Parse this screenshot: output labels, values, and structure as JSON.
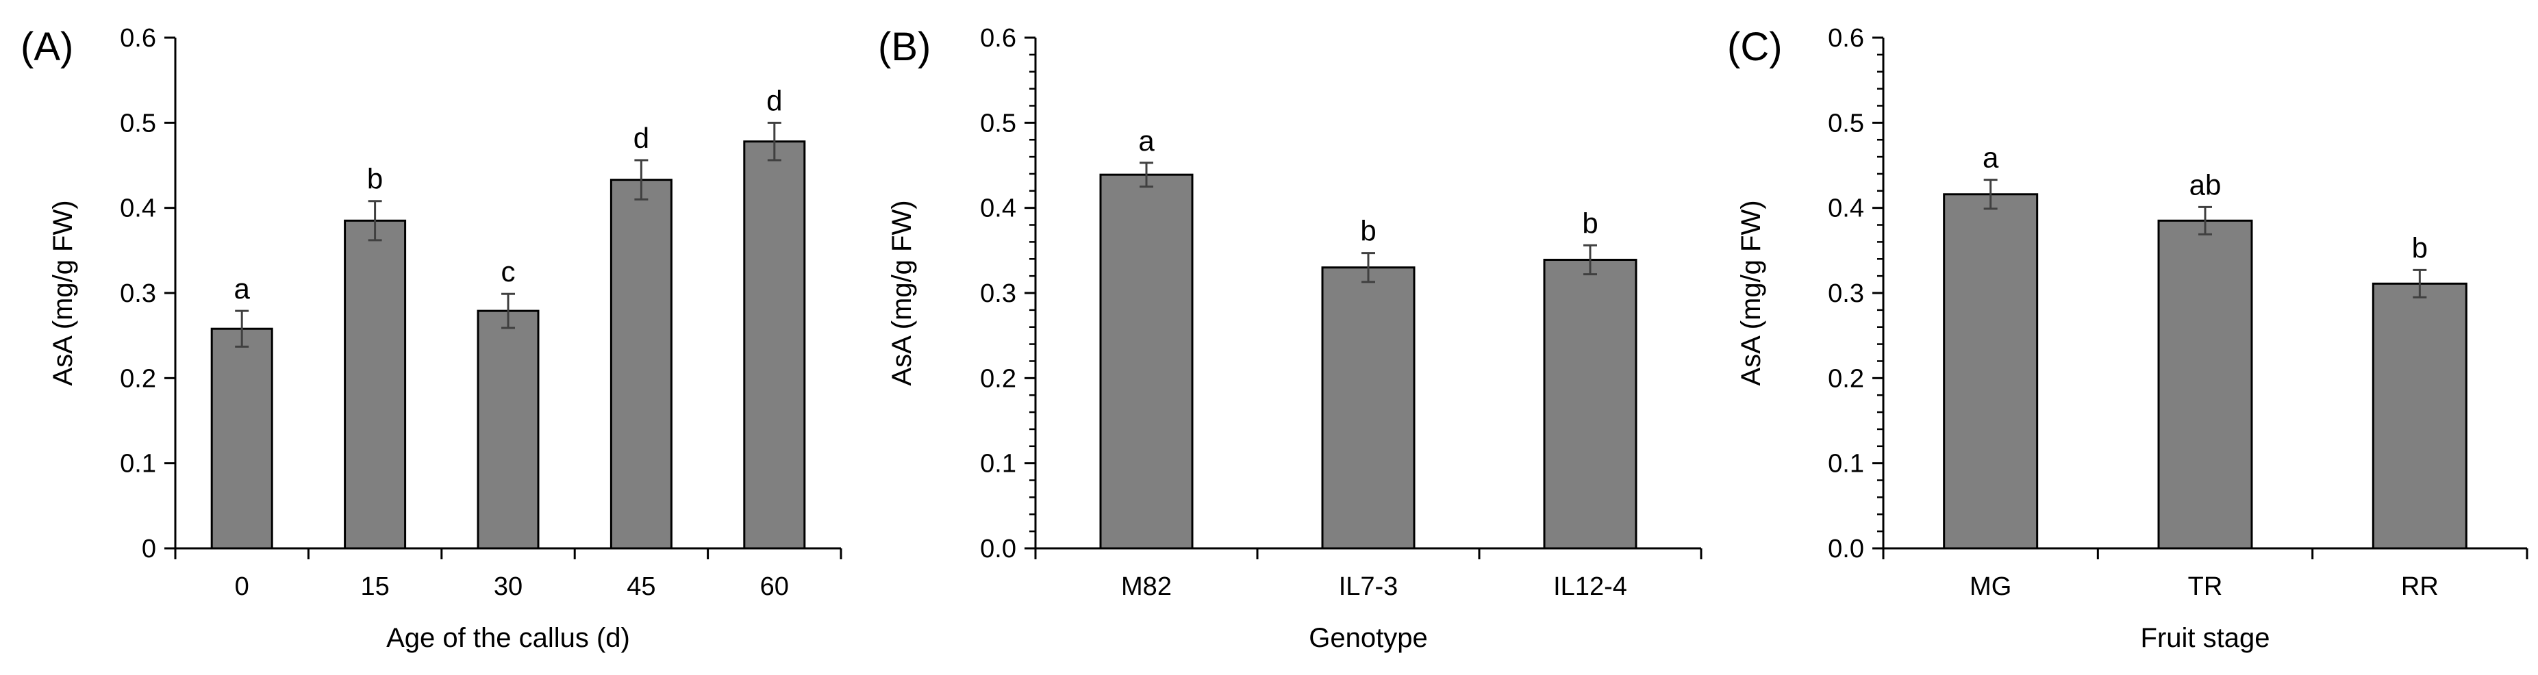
{
  "chart_data": [
    {
      "type": "bar",
      "panel_label": "(A)",
      "categories": [
        "0",
        "15",
        "30",
        "45",
        "60"
      ],
      "values": [
        0.258,
        0.385,
        0.279,
        0.433,
        0.478
      ],
      "errors": [
        0.021,
        0.023,
        0.02,
        0.023,
        0.022
      ],
      "significance": [
        "a",
        "b",
        "c",
        "d",
        "d"
      ],
      "xlabel": "Age of the callus (d)",
      "ylabel": "AsA (mg/g FW)",
      "ylim": [
        0,
        0.6
      ],
      "y_ticks": [
        "0",
        "0.1",
        "0.2",
        "0.3",
        "0.4",
        "0.5",
        "0.6"
      ],
      "bar_color": "#808080"
    },
    {
      "type": "bar",
      "panel_label": "(B)",
      "categories": [
        "M82",
        "IL7-3",
        "IL12-4"
      ],
      "values": [
        0.439,
        0.33,
        0.339
      ],
      "errors": [
        0.014,
        0.017,
        0.017
      ],
      "significance": [
        "a",
        "b",
        "b"
      ],
      "xlabel": "Genotype",
      "ylabel": "AsA (mg/g FW)",
      "ylim": [
        0,
        0.6
      ],
      "y_ticks": [
        "0.0",
        "0.1",
        "0.2",
        "0.3",
        "0.4",
        "0.5",
        "0.6"
      ],
      "bar_color": "#808080"
    },
    {
      "type": "bar",
      "panel_label": "(C)",
      "categories": [
        "MG",
        "TR",
        "RR"
      ],
      "values": [
        0.416,
        0.385,
        0.311
      ],
      "errors": [
        0.017,
        0.016,
        0.016
      ],
      "significance": [
        "a",
        "ab",
        "b"
      ],
      "xlabel": "Fruit stage",
      "ylabel": "AsA (mg/g FW)",
      "ylim": [
        0,
        0.6
      ],
      "y_ticks": [
        "0.0",
        "0.1",
        "0.2",
        "0.3",
        "0.4",
        "0.5",
        "0.6"
      ],
      "bar_color": "#808080"
    }
  ]
}
